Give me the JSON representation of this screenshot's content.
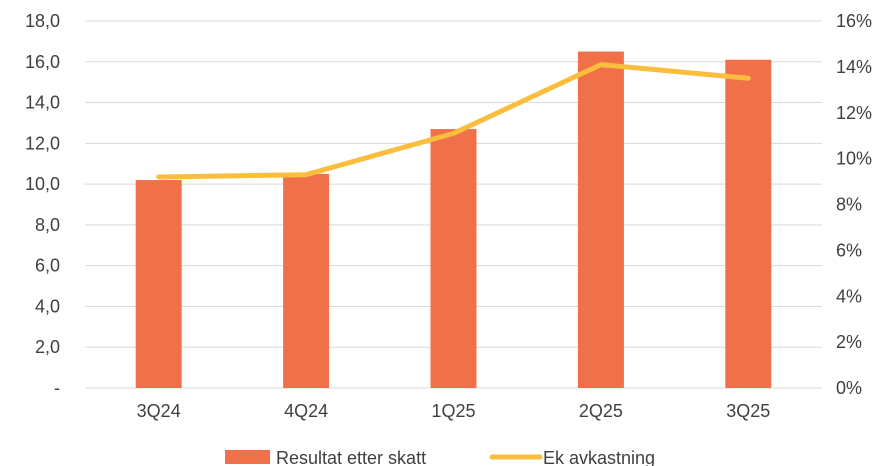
{
  "chart_data": {
    "type": "bar",
    "categories": [
      "3Q24",
      "4Q24",
      "1Q25",
      "2Q25",
      "3Q25"
    ],
    "series": [
      {
        "name": "Resultat etter skatt",
        "type": "bar",
        "axis": "left",
        "color": "#f0704a",
        "values": [
          10.2,
          10.5,
          12.7,
          16.5,
          16.1
        ]
      },
      {
        "name": "Ek avkastning",
        "type": "line",
        "axis": "right",
        "color": "#fbbd3c",
        "values": [
          0.092,
          0.093,
          0.111,
          0.141,
          0.135
        ]
      }
    ],
    "y_left": {
      "ylim": [
        0,
        18
      ],
      "ticks": [
        0,
        2,
        4,
        6,
        8,
        10,
        12,
        14,
        16,
        18
      ],
      "tick_labels": [
        "-",
        "2,0",
        "4,0",
        "6,0",
        "8,0",
        "10,0",
        "12,0",
        "14,0",
        "16,0",
        "18,0"
      ]
    },
    "y_right": {
      "ylim": [
        0,
        0.16
      ],
      "ticks": [
        0,
        0.02,
        0.04,
        0.06,
        0.08,
        0.1,
        0.12,
        0.14,
        0.16
      ],
      "tick_labels": [
        "0%",
        "2%",
        "4%",
        "6%",
        "8%",
        "10%",
        "12%",
        "14%",
        "16%"
      ]
    },
    "grid": true,
    "legend_position": "bottom-center",
    "title": "",
    "xlabel": "",
    "ylabel": ""
  }
}
